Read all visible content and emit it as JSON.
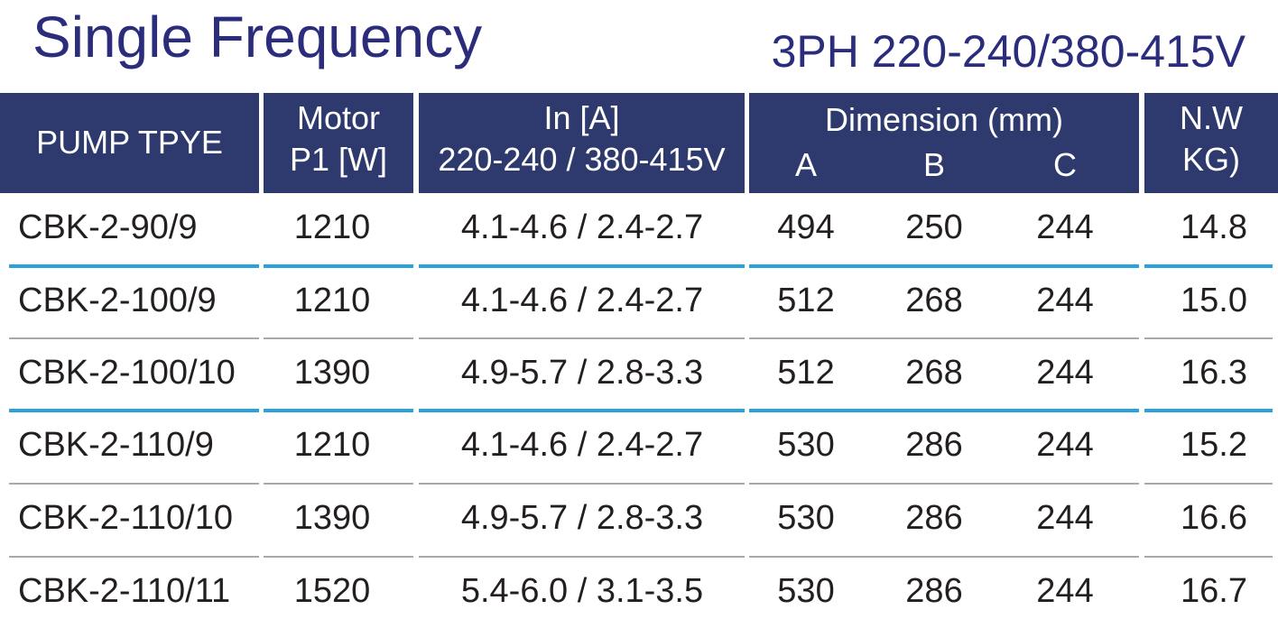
{
  "header": {
    "title": "Single Frequency",
    "subtitle": "3PH  220-240/380-415V"
  },
  "table": {
    "header": [
      [
        "PUMP TPYE"
      ],
      [
        "Motor",
        "P1 [W]"
      ],
      [
        "In [A]",
        "220-240 / 380-415V"
      ],
      [
        "Dimension (mm)"
      ],
      [
        "N.W",
        "KG)"
      ]
    ],
    "dimension_columns": [
      "A",
      "B",
      "C"
    ],
    "rows": [
      [
        "CBK-2-90/9",
        "1210",
        "4.1-4.6 / 2.4-2.7",
        "494",
        "250",
        "244",
        "14.8"
      ],
      [
        "CBK-2-100/9",
        "1210",
        "4.1-4.6 / 2.4-2.7",
        "512",
        "268",
        "244",
        "15.0"
      ],
      [
        "CBK-2-100/10",
        "1390",
        "4.9-5.7 / 2.8-3.3",
        "512",
        "268",
        "244",
        "16.3"
      ],
      [
        "CBK-2-110/9",
        "1210",
        "4.1-4.6 / 2.4-2.7",
        "530",
        "286",
        "244",
        "15.2"
      ],
      [
        "CBK-2-110/10",
        "1390",
        "4.9-5.7 / 2.8-3.3",
        "530",
        "286",
        "244",
        "16.6"
      ],
      [
        "CBK-2-110/11",
        "1520",
        "5.4-6.0 / 3.1-3.5",
        "530",
        "286",
        "244",
        "16.7"
      ]
    ]
  }
}
